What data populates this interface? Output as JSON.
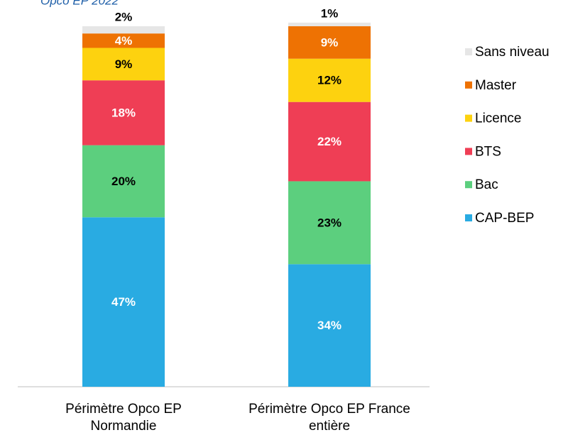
{
  "chart_data": {
    "type": "stacked_bar",
    "subtitle": "Opco EP 2022",
    "categories": [
      "Périmètre Opco EP Normandie",
      "Périmètre Opco EP France entière"
    ],
    "series": [
      {
        "name": "CAP-BEP",
        "color": "#29abe2",
        "label_color": "#ffffff",
        "values": [
          47,
          34
        ],
        "value_labels": [
          "47%",
          "34%"
        ]
      },
      {
        "name": "Bac",
        "color": "#5ccf7e",
        "label_color": "#000000",
        "values": [
          20,
          23
        ],
        "value_labels": [
          "20%",
          "23%"
        ]
      },
      {
        "name": "BTS",
        "color": "#ef3e55",
        "label_color": "#ffffff",
        "values": [
          18,
          22
        ],
        "value_labels": [
          "18%",
          "22%"
        ]
      },
      {
        "name": "Licence",
        "color": "#fdd20f",
        "label_color": "#000000",
        "values": [
          9,
          12
        ],
        "value_labels": [
          "9%",
          "12%"
        ]
      },
      {
        "name": "Master",
        "color": "#ee7203",
        "label_color": "#ffffff",
        "values": [
          4,
          9
        ],
        "value_labels": [
          "4%",
          "9%"
        ]
      },
      {
        "name": "Sans niveau",
        "color": "#e6e6e6",
        "label_color": "#000000",
        "values": [
          2,
          1
        ],
        "value_labels": [
          "2%",
          "1%"
        ]
      }
    ],
    "legend": "right"
  }
}
